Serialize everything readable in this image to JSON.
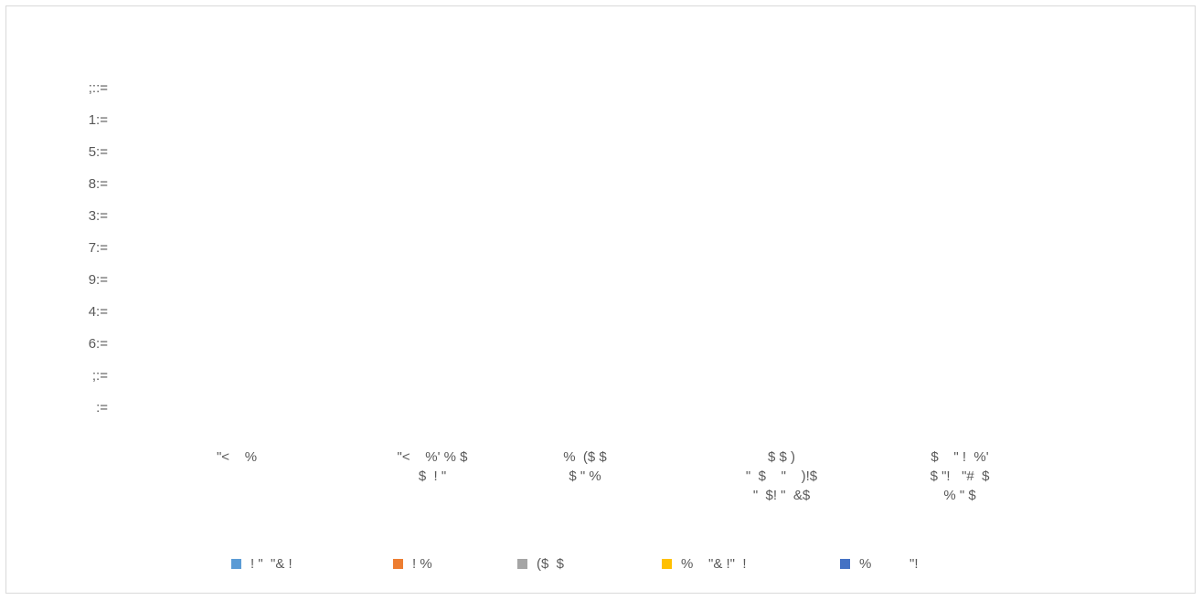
{
  "chart_data": {
    "type": "bar",
    "title": "",
    "xlabel": "",
    "ylabel": "",
    "y_ticks": [
      ";::=",
      "1:=",
      "5:=",
      "8:=",
      "3:=",
      "7:=",
      "9:=",
      "4:=",
      "6:=",
      ";:=",
      ":="
    ],
    "categories": [
      "\"<    %",
      "\"<    %' % $\n$  ! \"",
      "%  ($ $\n$ \" %",
      "$ $ )\n\"  $    \"    )!$\n\"  $! \"  &$",
      "$    \" !  %'\n$ \"!   \"#  $\n% \" $"
    ],
    "series": [
      {
        "name": "! \"  \"& !",
        "color": "#5B9BD5",
        "values": [
          null,
          null,
          null,
          null,
          null
        ]
      },
      {
        "name": "! %",
        "color": "#ED7D31",
        "values": [
          null,
          null,
          null,
          null,
          null
        ]
      },
      {
        "name": "($  $",
        "color": "#A5A5A5",
        "values": [
          null,
          null,
          null,
          null,
          null
        ]
      },
      {
        "name": "%    \"& !\"  !",
        "color": "#FFC000",
        "values": [
          null,
          null,
          null,
          null,
          null
        ]
      },
      {
        "name": "%          \"!",
        "color": "#4472C4",
        "values": [
          null,
          null,
          null,
          null,
          null
        ]
      }
    ],
    "legend": "bottom",
    "grid": false
  }
}
